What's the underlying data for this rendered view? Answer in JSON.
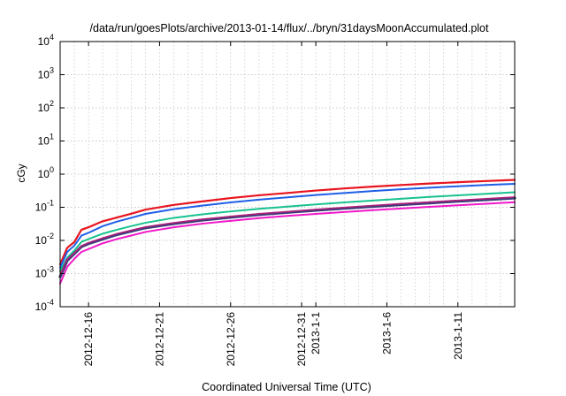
{
  "chart_data": {
    "type": "line",
    "title": "/data/run/goesPlots/archive/2013-01-14/flux/../bryn/31daysMoonAccumulated.plot",
    "xlabel": "Coordinated Universal Time (UTC)",
    "ylabel": "cGy",
    "yscale": "log",
    "ylim": [
      0.0001,
      10000
    ],
    "xlim": [
      "2012-12-14",
      "2013-01-15"
    ],
    "grid": true,
    "y_ticks": [
      {
        "value": 0.0001,
        "base": "10",
        "exp": "-4"
      },
      {
        "value": 0.001,
        "base": "10",
        "exp": "-3"
      },
      {
        "value": 0.01,
        "base": "10",
        "exp": "-2"
      },
      {
        "value": 0.1,
        "base": "10",
        "exp": "-1"
      },
      {
        "value": 1,
        "base": "10",
        "exp": "0"
      },
      {
        "value": 10,
        "base": "10",
        "exp": "1"
      },
      {
        "value": 100,
        "base": "10",
        "exp": "2"
      },
      {
        "value": 1000,
        "base": "10",
        "exp": "3"
      },
      {
        "value": 10000,
        "base": "10",
        "exp": "4"
      }
    ],
    "x_ticks": [
      {
        "date": "2012-12-16",
        "label": "2012-12-16"
      },
      {
        "date": "2012-12-21",
        "label": "2012-12-21"
      },
      {
        "date": "2012-12-26",
        "label": "2012-12-26"
      },
      {
        "date": "2012-12-31",
        "label": "2012-12-31"
      },
      {
        "date": "2013-01-01",
        "label": "2013-1-1"
      },
      {
        "date": "2013-01-06",
        "label": "2013-1-6"
      },
      {
        "date": "2013-01-11",
        "label": "2013-1-11"
      }
    ],
    "series": [
      {
        "color": "#e8141e",
        "width": 2.2,
        "points": [
          [
            "2012-12-14",
            0.0019
          ],
          [
            "2012-12-14T12:00",
            0.006
          ],
          [
            "2012-12-15",
            0.009
          ],
          [
            "2012-12-15T12:00",
            0.021
          ],
          [
            "2012-12-16",
            0.025
          ],
          [
            "2012-12-17",
            0.038
          ],
          [
            "2012-12-18",
            0.049
          ],
          [
            "2012-12-19",
            0.064
          ],
          [
            "2012-12-20",
            0.085
          ],
          [
            "2012-12-22",
            0.118
          ],
          [
            "2012-12-24",
            0.15
          ],
          [
            "2012-12-26",
            0.19
          ],
          [
            "2012-12-28",
            0.23
          ],
          [
            "2012-12-30",
            0.27
          ],
          [
            "2013-01-01",
            0.32
          ],
          [
            "2013-01-03",
            0.37
          ],
          [
            "2013-01-05",
            0.42
          ],
          [
            "2013-01-07",
            0.47
          ],
          [
            "2013-01-09",
            0.52
          ],
          [
            "2013-01-11",
            0.57
          ],
          [
            "2013-01-13",
            0.62
          ],
          [
            "2013-01-15",
            0.67
          ]
        ]
      },
      {
        "color": "#1f5fe6",
        "width": 2.0,
        "points": [
          [
            "2012-12-14",
            0.0015
          ],
          [
            "2012-12-14T12:00",
            0.0045
          ],
          [
            "2012-12-15",
            0.007
          ],
          [
            "2012-12-15T12:00",
            0.014
          ],
          [
            "2012-12-16",
            0.017
          ],
          [
            "2012-12-17",
            0.027
          ],
          [
            "2012-12-18",
            0.037
          ],
          [
            "2012-12-19",
            0.048
          ],
          [
            "2012-12-20",
            0.063
          ],
          [
            "2012-12-22",
            0.088
          ],
          [
            "2012-12-24",
            0.112
          ],
          [
            "2012-12-26",
            0.14
          ],
          [
            "2012-12-28",
            0.17
          ],
          [
            "2012-12-30",
            0.2
          ],
          [
            "2013-01-01",
            0.235
          ],
          [
            "2013-01-03",
            0.27
          ],
          [
            "2013-01-05",
            0.31
          ],
          [
            "2013-01-07",
            0.35
          ],
          [
            "2013-01-09",
            0.39
          ],
          [
            "2013-01-11",
            0.43
          ],
          [
            "2013-01-13",
            0.47
          ],
          [
            "2013-01-15",
            0.51
          ]
        ]
      },
      {
        "color": "#19c28f",
        "width": 2.0,
        "points": [
          [
            "2012-12-14",
            0.0012
          ],
          [
            "2012-12-14T12:00",
            0.003
          ],
          [
            "2012-12-15",
            0.005
          ],
          [
            "2012-12-15T12:00",
            0.009
          ],
          [
            "2012-12-16",
            0.011
          ],
          [
            "2012-12-17",
            0.016
          ],
          [
            "2012-12-18",
            0.021
          ],
          [
            "2012-12-19",
            0.027
          ],
          [
            "2012-12-20",
            0.034
          ],
          [
            "2012-12-22",
            0.048
          ],
          [
            "2012-12-24",
            0.061
          ],
          [
            "2012-12-26",
            0.075
          ],
          [
            "2012-12-28",
            0.09
          ],
          [
            "2012-12-30",
            0.105
          ],
          [
            "2013-01-01",
            0.122
          ],
          [
            "2013-01-03",
            0.14
          ],
          [
            "2013-01-05",
            0.16
          ],
          [
            "2013-01-07",
            0.18
          ],
          [
            "2013-01-09",
            0.205
          ],
          [
            "2013-01-11",
            0.23
          ],
          [
            "2013-01-13",
            0.255
          ],
          [
            "2013-01-15",
            0.285
          ]
        ]
      },
      {
        "color": "#3a3a7a",
        "width": 3.2,
        "points": [
          [
            "2012-12-14",
            0.0008
          ],
          [
            "2012-12-14T12:00",
            0.0025
          ],
          [
            "2012-12-15",
            0.004
          ],
          [
            "2012-12-15T12:00",
            0.0065
          ],
          [
            "2012-12-16",
            0.008
          ],
          [
            "2012-12-17",
            0.011
          ],
          [
            "2012-12-18",
            0.015
          ],
          [
            "2012-12-19",
            0.019
          ],
          [
            "2012-12-20",
            0.024
          ],
          [
            "2012-12-22",
            0.032
          ],
          [
            "2012-12-24",
            0.041
          ],
          [
            "2012-12-26",
            0.05
          ],
          [
            "2012-12-28",
            0.06
          ],
          [
            "2012-12-30",
            0.07
          ],
          [
            "2013-01-01",
            0.081
          ],
          [
            "2013-01-03",
            0.093
          ],
          [
            "2013-01-05",
            0.106
          ],
          [
            "2013-01-07",
            0.12
          ],
          [
            "2013-01-09",
            0.135
          ],
          [
            "2013-01-11",
            0.152
          ],
          [
            "2013-01-13",
            0.17
          ],
          [
            "2013-01-15",
            0.19
          ]
        ]
      },
      {
        "color": "#b0207a",
        "width": 1.6,
        "points": [
          [
            "2012-12-14",
            0.0009
          ],
          [
            "2012-12-14T12:00",
            0.0027
          ],
          [
            "2012-12-15",
            0.0042
          ],
          [
            "2012-12-15T12:00",
            0.0068
          ],
          [
            "2012-12-16",
            0.0085
          ],
          [
            "2012-12-17",
            0.0118
          ],
          [
            "2012-12-18",
            0.016
          ],
          [
            "2012-12-19",
            0.0202
          ],
          [
            "2012-12-20",
            0.0255
          ],
          [
            "2012-12-22",
            0.034
          ],
          [
            "2012-12-24",
            0.0435
          ],
          [
            "2012-12-26",
            0.053
          ],
          [
            "2012-12-28",
            0.064
          ],
          [
            "2012-12-30",
            0.074
          ],
          [
            "2013-01-01",
            0.086
          ],
          [
            "2013-01-03",
            0.099
          ],
          [
            "2013-01-05",
            0.113
          ],
          [
            "2013-01-07",
            0.128
          ],
          [
            "2013-01-09",
            0.144
          ],
          [
            "2013-01-11",
            0.162
          ],
          [
            "2013-01-13",
            0.181
          ],
          [
            "2013-01-15",
            0.203
          ]
        ]
      },
      {
        "color": "#f018c8",
        "width": 2.0,
        "points": [
          [
            "2012-12-14",
            0.0005
          ],
          [
            "2012-12-14T12:00",
            0.0016
          ],
          [
            "2012-12-15",
            0.0028
          ],
          [
            "2012-12-15T12:00",
            0.0045
          ],
          [
            "2012-12-16",
            0.0055
          ],
          [
            "2012-12-17",
            0.0082
          ],
          [
            "2012-12-18",
            0.011
          ],
          [
            "2012-12-19",
            0.014
          ],
          [
            "2012-12-20",
            0.018
          ],
          [
            "2012-12-22",
            0.025
          ],
          [
            "2012-12-24",
            0.032
          ],
          [
            "2012-12-26",
            0.039
          ],
          [
            "2012-12-28",
            0.047
          ],
          [
            "2012-12-30",
            0.055
          ],
          [
            "2013-01-01",
            0.063
          ],
          [
            "2013-01-03",
            0.072
          ],
          [
            "2013-01-05",
            0.082
          ],
          [
            "2013-01-07",
            0.092
          ],
          [
            "2013-01-09",
            0.103
          ],
          [
            "2013-01-11",
            0.115
          ],
          [
            "2013-01-13",
            0.128
          ],
          [
            "2013-01-15",
            0.142
          ]
        ]
      }
    ]
  }
}
